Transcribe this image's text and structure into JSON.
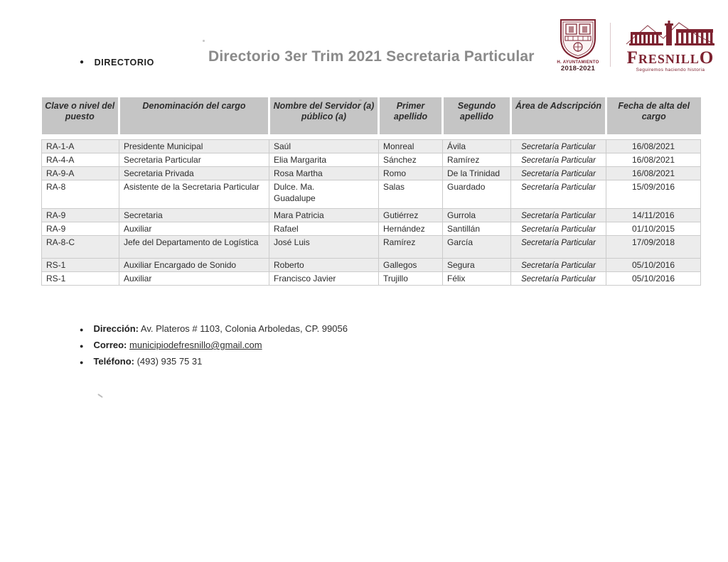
{
  "page": {
    "section_label": "DIRECTORIO",
    "title": "Directorio 3er Trim 2021 Secretaria Particular"
  },
  "logos": {
    "crest": {
      "caption1": "H. AYUNTAMIENTO",
      "caption2": "2018-2021"
    },
    "fresnillo": {
      "wordmark_first": "F",
      "wordmark_middle": "RESNILL",
      "wordmark_last": "O",
      "tagline": "Seguiremos haciendo historia"
    }
  },
  "colors": {
    "maroon": "#7d2230",
    "title_gray": "#8a8a8a",
    "header_bg": "#c5c5c5",
    "shaded_row": "#ececec"
  },
  "table": {
    "columns": [
      "Clave o nivel del puesto",
      "Denominación del cargo",
      "Nombre del Servidor (a) público (a)",
      "Primer apellido",
      "Segundo apellido",
      "Área de Adscripción",
      "Fecha de alta del cargo"
    ],
    "rows": [
      {
        "shaded": true,
        "cells": [
          "RA-1-A",
          "Presidente Municipal",
          "Saúl",
          "Monreal",
          "Ávila",
          "Secretaría Particular",
          "16/08/2021"
        ]
      },
      {
        "shaded": false,
        "cells": [
          "RA-4-A",
          "Secretaria Particular",
          "Elia Margarita",
          "Sánchez",
          "Ramírez",
          "Secretaría Particular",
          "16/08/2021"
        ]
      },
      {
        "shaded": true,
        "cells": [
          "RA-9-A",
          "Secretaria Privada",
          "Rosa Martha",
          "Romo",
          "De la Trinidad",
          "Secretaría Particular",
          "16/08/2021"
        ]
      },
      {
        "shaded": false,
        "cells": [
          "RA-8",
          "Asistente de la Secretaria Particular",
          "Dulce. Ma. Guadalupe",
          "Salas",
          "Guardado",
          "Secretaría Particular",
          "15/09/2016"
        ]
      },
      {
        "shaded": true,
        "cells": [
          "RA-9",
          "Secretaria",
          "Mara Patricia",
          "Gutiérrez",
          "Gurrola",
          "Secretaría Particular",
          "14/11/2016"
        ]
      },
      {
        "shaded": false,
        "cells": [
          "RA-9",
          "Auxiliar",
          "Rafael",
          "Hernández",
          "Santillán",
          "Secretaría Particular",
          "01/10/2015"
        ]
      },
      {
        "shaded": true,
        "cells": [
          "RA-8-C",
          "Jefe del Departamento de Logística",
          "José Luis",
          "Ramírez",
          "García",
          "Secretaría Particular",
          "17/09/2018"
        ]
      },
      {
        "shaded": true,
        "cells": [
          "RS-1",
          "Auxiliar Encargado de Sonido",
          "Roberto",
          "Gallegos",
          "Segura",
          "Secretaría Particular",
          "05/10/2016"
        ]
      },
      {
        "shaded": false,
        "cells": [
          "RS-1",
          "Auxiliar",
          "Francisco Javier",
          "Trujillo",
          "Félix",
          "Secretaría Particular",
          "05/10/2016"
        ]
      }
    ]
  },
  "footer": {
    "items": [
      {
        "label": "Dirección:",
        "text": "Av. Plateros # 1103, Colonia Arboledas, CP. 99056"
      },
      {
        "label": "Correo:",
        "text": "municipiodefresnillo@gmail.com"
      },
      {
        "label": "Teléfono:",
        "text": "(493) 935 75 31"
      }
    ]
  }
}
